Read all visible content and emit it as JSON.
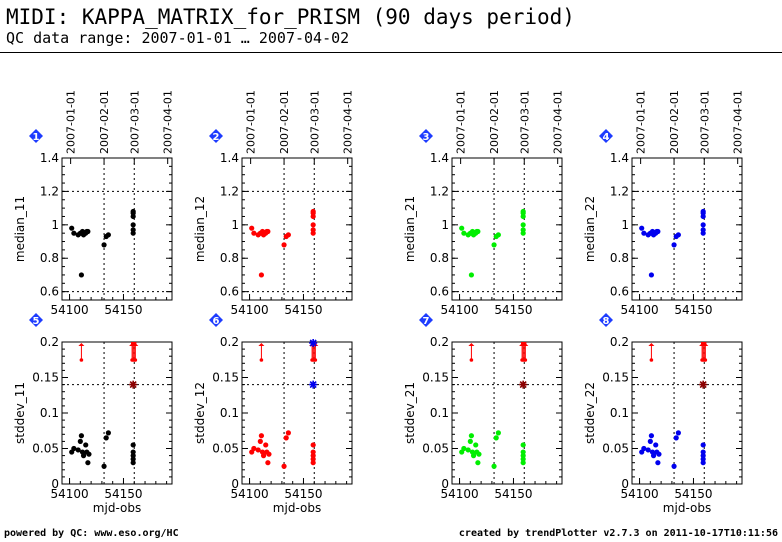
{
  "header": {
    "title": "MIDI: KAPPA_MATRIX_for_PRISM (90 days period)",
    "subtitle": "QC data range: 2007-01-01 … 2007-04-02"
  },
  "footer": {
    "left": "powered by QC: www.eso.org/HC",
    "right": "created by trendPlotter v2.7.3 on 2011-10-17T10:11:56"
  },
  "colors": {
    "black": "#000000",
    "red": "#ff0000",
    "green": "#00ee00",
    "blue": "#0000ee",
    "maroon": "#8b0000",
    "badge": "#1e3cff"
  },
  "chart_data": [
    {
      "type": "scatter",
      "panel": "1",
      "color": "black",
      "ylabel": "median_11",
      "xlabel": "",
      "xlim": [
        54093,
        54195
      ],
      "ylim": [
        0.55,
        1.4
      ],
      "yticks": [
        "0.6",
        "0.8",
        "1",
        "1.2",
        "1.4"
      ],
      "xticks": [
        "54100",
        "54150"
      ],
      "top_dates": [
        "2007-01-01",
        "2007-02-01",
        "2007-03-01",
        "2007-04-01"
      ],
      "points": [
        [
          54102,
          0.98
        ],
        [
          54104,
          0.95
        ],
        [
          54108,
          0.94
        ],
        [
          54110,
          0.95
        ],
        [
          54111,
          0.95
        ],
        [
          54112,
          0.96
        ],
        [
          54113,
          0.94
        ],
        [
          54115,
          0.95
        ],
        [
          54116,
          0.96
        ],
        [
          54117,
          0.96
        ],
        [
          54111,
          0.7
        ],
        [
          54132,
          0.88
        ],
        [
          54134,
          0.93
        ],
        [
          54136,
          0.94
        ],
        [
          54159,
          1.08
        ],
        [
          54159,
          1.07
        ],
        [
          54159,
          1.05
        ],
        [
          54159,
          1.0
        ],
        [
          54159,
          0.97
        ],
        [
          54159,
          0.95
        ]
      ]
    },
    {
      "type": "scatter",
      "panel": "2",
      "color": "red",
      "ylabel": "median_12",
      "xlabel": "",
      "xlim": [
        54093,
        54195
      ],
      "ylim": [
        0.55,
        1.4
      ],
      "yticks": [
        "0.6",
        "0.8",
        "1",
        "1.2",
        "1.4"
      ],
      "xticks": [
        "54100",
        "54150"
      ],
      "top_dates": [
        "2007-01-01",
        "2007-02-01",
        "2007-03-01",
        "2007-04-01"
      ],
      "points": [
        [
          54102,
          0.98
        ],
        [
          54104,
          0.95
        ],
        [
          54108,
          0.94
        ],
        [
          54110,
          0.95
        ],
        [
          54111,
          0.95
        ],
        [
          54112,
          0.96
        ],
        [
          54113,
          0.94
        ],
        [
          54115,
          0.95
        ],
        [
          54116,
          0.96
        ],
        [
          54117,
          0.96
        ],
        [
          54111,
          0.7
        ],
        [
          54132,
          0.88
        ],
        [
          54134,
          0.93
        ],
        [
          54136,
          0.94
        ],
        [
          54159,
          1.08
        ],
        [
          54159,
          1.07
        ],
        [
          54159,
          1.05
        ],
        [
          54159,
          1.0
        ],
        [
          54159,
          0.97
        ],
        [
          54159,
          0.95
        ]
      ]
    },
    {
      "type": "scatter",
      "panel": "3",
      "color": "green",
      "ylabel": "median_21",
      "xlabel": "",
      "xlim": [
        54093,
        54195
      ],
      "ylim": [
        0.55,
        1.4
      ],
      "yticks": [
        "0.6",
        "0.8",
        "1",
        "1.2",
        "1.4"
      ],
      "xticks": [
        "54100",
        "54150"
      ],
      "top_dates": [
        "2007-01-01",
        "2007-02-01",
        "2007-03-01",
        "2007-04-01"
      ],
      "points": [
        [
          54102,
          0.98
        ],
        [
          54104,
          0.95
        ],
        [
          54108,
          0.94
        ],
        [
          54110,
          0.95
        ],
        [
          54111,
          0.95
        ],
        [
          54112,
          0.96
        ],
        [
          54113,
          0.94
        ],
        [
          54115,
          0.95
        ],
        [
          54116,
          0.96
        ],
        [
          54117,
          0.96
        ],
        [
          54111,
          0.7
        ],
        [
          54132,
          0.88
        ],
        [
          54134,
          0.93
        ],
        [
          54136,
          0.94
        ],
        [
          54159,
          1.08
        ],
        [
          54159,
          1.07
        ],
        [
          54159,
          1.05
        ],
        [
          54159,
          1.0
        ],
        [
          54159,
          0.97
        ],
        [
          54159,
          0.95
        ]
      ]
    },
    {
      "type": "scatter",
      "panel": "4",
      "color": "blue",
      "ylabel": "median_22",
      "xlabel": "",
      "xlim": [
        54093,
        54195
      ],
      "ylim": [
        0.55,
        1.4
      ],
      "yticks": [
        "0.6",
        "0.8",
        "1",
        "1.2",
        "1.4"
      ],
      "xticks": [
        "54100",
        "54150"
      ],
      "top_dates": [
        "2007-01-01",
        "2007-02-01",
        "2007-03-01",
        "2007-04-01"
      ],
      "points": [
        [
          54102,
          0.98
        ],
        [
          54104,
          0.95
        ],
        [
          54108,
          0.94
        ],
        [
          54110,
          0.95
        ],
        [
          54111,
          0.95
        ],
        [
          54112,
          0.96
        ],
        [
          54113,
          0.94
        ],
        [
          54115,
          0.95
        ],
        [
          54116,
          0.96
        ],
        [
          54117,
          0.96
        ],
        [
          54111,
          0.7
        ],
        [
          54132,
          0.88
        ],
        [
          54134,
          0.93
        ],
        [
          54136,
          0.94
        ],
        [
          54159,
          1.08
        ],
        [
          54159,
          1.07
        ],
        [
          54159,
          1.05
        ],
        [
          54159,
          1.0
        ],
        [
          54159,
          0.97
        ],
        [
          54159,
          0.95
        ]
      ]
    },
    {
      "type": "scatter",
      "panel": "5",
      "color": "black",
      "ylabel": "stddev_11",
      "xlabel": "mjd-obs",
      "xlim": [
        54093,
        54195
      ],
      "ylim": [
        0,
        0.2
      ],
      "yticks": [
        "0",
        "0.05",
        "0.1",
        "0.15",
        "0.2"
      ],
      "xticks": [
        "54100",
        "54150"
      ],
      "hline": 0.14,
      "marker_x": 54159,
      "marker_color": "maroon",
      "outliers": [
        54111,
        54158,
        54159,
        54160,
        54161
      ],
      "points": [
        [
          54102,
          0.045
        ],
        [
          54104,
          0.05
        ],
        [
          54108,
          0.048
        ],
        [
          54110,
          0.06
        ],
        [
          54111,
          0.068
        ],
        [
          54112,
          0.045
        ],
        [
          54113,
          0.04
        ],
        [
          54115,
          0.055
        ],
        [
          54116,
          0.045
        ],
        [
          54117,
          0.03
        ],
        [
          54118,
          0.042
        ],
        [
          54132,
          0.025
        ],
        [
          54134,
          0.065
        ],
        [
          54136,
          0.072
        ],
        [
          54159,
          0.055
        ],
        [
          54159,
          0.045
        ],
        [
          54159,
          0.04
        ],
        [
          54159,
          0.035
        ],
        [
          54159,
          0.03
        ]
      ]
    },
    {
      "type": "scatter",
      "panel": "6",
      "color": "red",
      "ylabel": "stddev_12",
      "xlabel": "mjd-obs",
      "xlim": [
        54093,
        54195
      ],
      "ylim": [
        0,
        0.2
      ],
      "yticks": [
        "0",
        "0.05",
        "0.1",
        "0.15",
        "0.2"
      ],
      "xticks": [
        "54100",
        "54150"
      ],
      "hline": 0.14,
      "marker_x": 54159,
      "marker_color": "blue",
      "outliers": [
        54111,
        54158,
        54159,
        54160,
        54161
      ],
      "points": [
        [
          54102,
          0.045
        ],
        [
          54104,
          0.05
        ],
        [
          54108,
          0.048
        ],
        [
          54110,
          0.06
        ],
        [
          54111,
          0.068
        ],
        [
          54112,
          0.045
        ],
        [
          54113,
          0.04
        ],
        [
          54115,
          0.055
        ],
        [
          54116,
          0.045
        ],
        [
          54117,
          0.03
        ],
        [
          54118,
          0.042
        ],
        [
          54132,
          0.025
        ],
        [
          54134,
          0.065
        ],
        [
          54136,
          0.072
        ],
        [
          54159,
          0.055
        ],
        [
          54159,
          0.045
        ],
        [
          54159,
          0.04
        ],
        [
          54159,
          0.035
        ],
        [
          54159,
          0.03
        ]
      ]
    },
    {
      "type": "scatter",
      "panel": "7",
      "color": "green",
      "ylabel": "stddev_21",
      "xlabel": "",
      "xlim": [
        54093,
        54195
      ],
      "ylim": [
        0,
        0.2
      ],
      "yticks": [
        "0",
        "0.05",
        "0.1",
        "0.15",
        "0.2"
      ],
      "xticks": [
        "54100",
        "54150"
      ],
      "hline": 0.14,
      "marker_x": 54159,
      "marker_color": "maroon",
      "outliers": [
        54111,
        54158,
        54159,
        54160,
        54161
      ],
      "points": [
        [
          54102,
          0.045
        ],
        [
          54104,
          0.05
        ],
        [
          54108,
          0.048
        ],
        [
          54110,
          0.06
        ],
        [
          54111,
          0.068
        ],
        [
          54112,
          0.045
        ],
        [
          54113,
          0.04
        ],
        [
          54115,
          0.055
        ],
        [
          54116,
          0.045
        ],
        [
          54117,
          0.03
        ],
        [
          54118,
          0.042
        ],
        [
          54132,
          0.025
        ],
        [
          54134,
          0.065
        ],
        [
          54136,
          0.072
        ],
        [
          54159,
          0.055
        ],
        [
          54159,
          0.045
        ],
        [
          54159,
          0.04
        ],
        [
          54159,
          0.035
        ],
        [
          54159,
          0.03
        ]
      ]
    },
    {
      "type": "scatter",
      "panel": "8",
      "color": "blue",
      "ylabel": "stddev_22",
      "xlabel": "mjd-obs",
      "xlim": [
        54093,
        54195
      ],
      "ylim": [
        0,
        0.2
      ],
      "yticks": [
        "0",
        "0.05",
        "0.1",
        "0.15",
        "0.2"
      ],
      "xticks": [
        "54100",
        "54150"
      ],
      "hline": 0.14,
      "marker_x": 54159,
      "marker_color": "maroon",
      "outliers": [
        54111,
        54158,
        54159,
        54160,
        54161
      ],
      "points": [
        [
          54102,
          0.045
        ],
        [
          54104,
          0.05
        ],
        [
          54108,
          0.048
        ],
        [
          54110,
          0.06
        ],
        [
          54111,
          0.068
        ],
        [
          54112,
          0.045
        ],
        [
          54113,
          0.04
        ],
        [
          54115,
          0.055
        ],
        [
          54116,
          0.045
        ],
        [
          54117,
          0.03
        ],
        [
          54118,
          0.042
        ],
        [
          54132,
          0.025
        ],
        [
          54134,
          0.065
        ],
        [
          54136,
          0.072
        ],
        [
          54159,
          0.055
        ],
        [
          54159,
          0.045
        ],
        [
          54159,
          0.04
        ],
        [
          54159,
          0.035
        ],
        [
          54159,
          0.03
        ]
      ]
    }
  ]
}
